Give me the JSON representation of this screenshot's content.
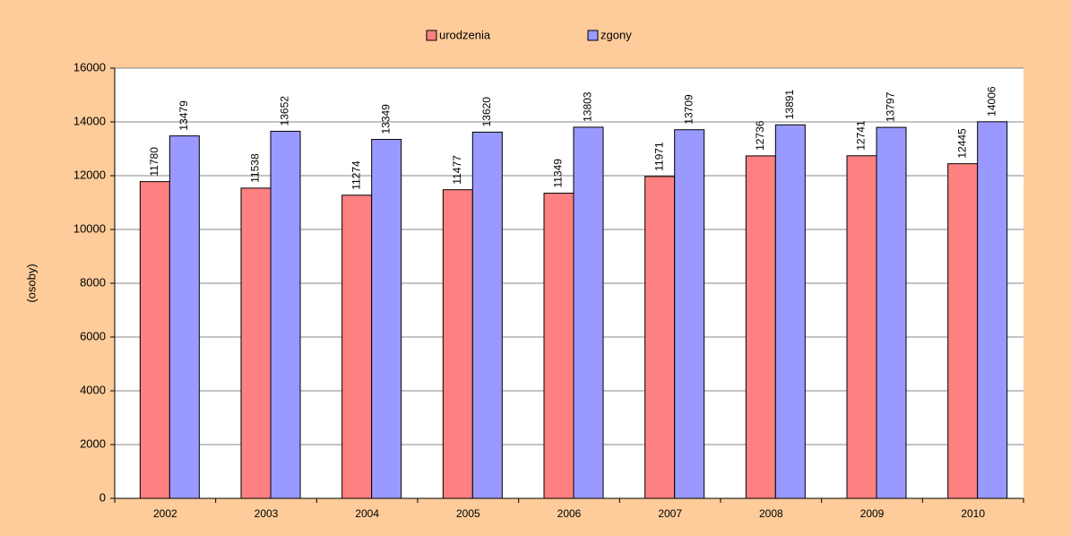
{
  "chart_data": {
    "type": "bar",
    "y_label": "(osoby)",
    "categories": [
      "2002",
      "2003",
      "2004",
      "2005",
      "2006",
      "2007",
      "2008",
      "2009",
      "2010"
    ],
    "series": [
      {
        "name": "urodzenia",
        "color": "#ff8080",
        "values": [
          11780,
          11538,
          11274,
          11477,
          11349,
          11971,
          12736,
          12741,
          12445
        ]
      },
      {
        "name": "zgony",
        "color": "#9999ff",
        "values": [
          13479,
          13652,
          13349,
          13620,
          13803,
          13709,
          13891,
          13797,
          14006
        ]
      }
    ],
    "ylim": [
      0,
      16000
    ],
    "yticks": [
      0,
      2000,
      4000,
      6000,
      8000,
      10000,
      12000,
      14000,
      16000
    ],
    "grid": true,
    "legend": "top",
    "data_labels": true
  }
}
